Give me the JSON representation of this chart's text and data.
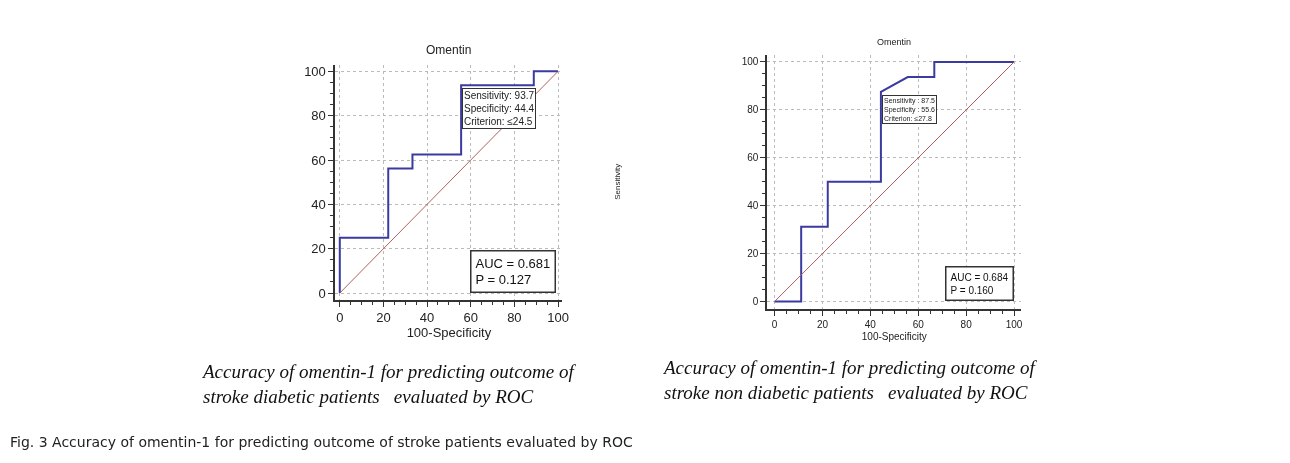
{
  "chart_data": [
    {
      "type": "line",
      "title": "Omentin",
      "xlabel": "100-Specificity",
      "xlim": [
        -2,
        102
      ],
      "ylim": [
        -3,
        103
      ],
      "xticks": [
        0,
        20,
        40,
        60,
        80,
        100
      ],
      "yticks": [
        0,
        20,
        40,
        60,
        80,
        100
      ],
      "grid": true,
      "marker": "none",
      "line_style": "solid",
      "series": [
        {
          "color": "#3a3aa0",
          "x": [
            0,
            0,
            22.2,
            22.2,
            33.3,
            33.3,
            55.6,
            55.6,
            88.9,
            88.9,
            100
          ],
          "values": [
            0,
            25,
            25,
            56.2,
            56.2,
            62.5,
            62.5,
            93.7,
            93.7,
            100,
            100
          ]
        },
        {
          "color": "#b06060",
          "x": [
            0,
            100
          ],
          "values": [
            0,
            100
          ]
        }
      ],
      "annotations": [
        {
          "text": "Sensitivity: 93.7\nSpecificity: 44.4\nCriterion: ≤24.5",
          "x": 55.6,
          "y": 93.7
        },
        "AUC = 0.681\nP = 0.127",
        "Accuracy of omentin-1 for predicting outcome of\nstroke diabetic patients   evaluated by ROC"
      ]
    },
    {
      "type": "line",
      "title": "Omentin",
      "xlabel": "100-Specificity",
      "ylabel": "Sensitivity",
      "xlim": [
        -3,
        103
      ],
      "ylim": [
        -3,
        103
      ],
      "xticks": [
        0,
        20,
        40,
        60,
        80,
        100
      ],
      "yticks": [
        0,
        20,
        40,
        60,
        80,
        100
      ],
      "grid": true,
      "marker": "none",
      "line_style": "solid",
      "series": [
        {
          "color": "#3a3aa0",
          "x": [
            0,
            11.1,
            11.1,
            22.2,
            22.2,
            44.4,
            44.4,
            55.6,
            66.7,
            66.7,
            100
          ],
          "values": [
            0,
            0,
            31.2,
            31.2,
            50,
            50,
            87.5,
            93.7,
            93.7,
            100,
            100
          ]
        },
        {
          "color": "#b06060",
          "x": [
            0,
            100
          ],
          "values": [
            0,
            100
          ]
        }
      ],
      "annotations": [
        {
          "text": "Sensitivity : 87.5\nSpecificity : 55.6\nCriterion: ≤27.8",
          "x": 44.4,
          "y": 87.5
        },
        "AUC = 0.684\nP = 0.160",
        "Accuracy of omentin-1 for predicting outcome of\nstroke non diabetic patients   evaluated by ROC",
        "Fig. 3 Accuracy of omentin-1 for predicting outcome of stroke patients evaluated by ROC"
      ]
    }
  ]
}
